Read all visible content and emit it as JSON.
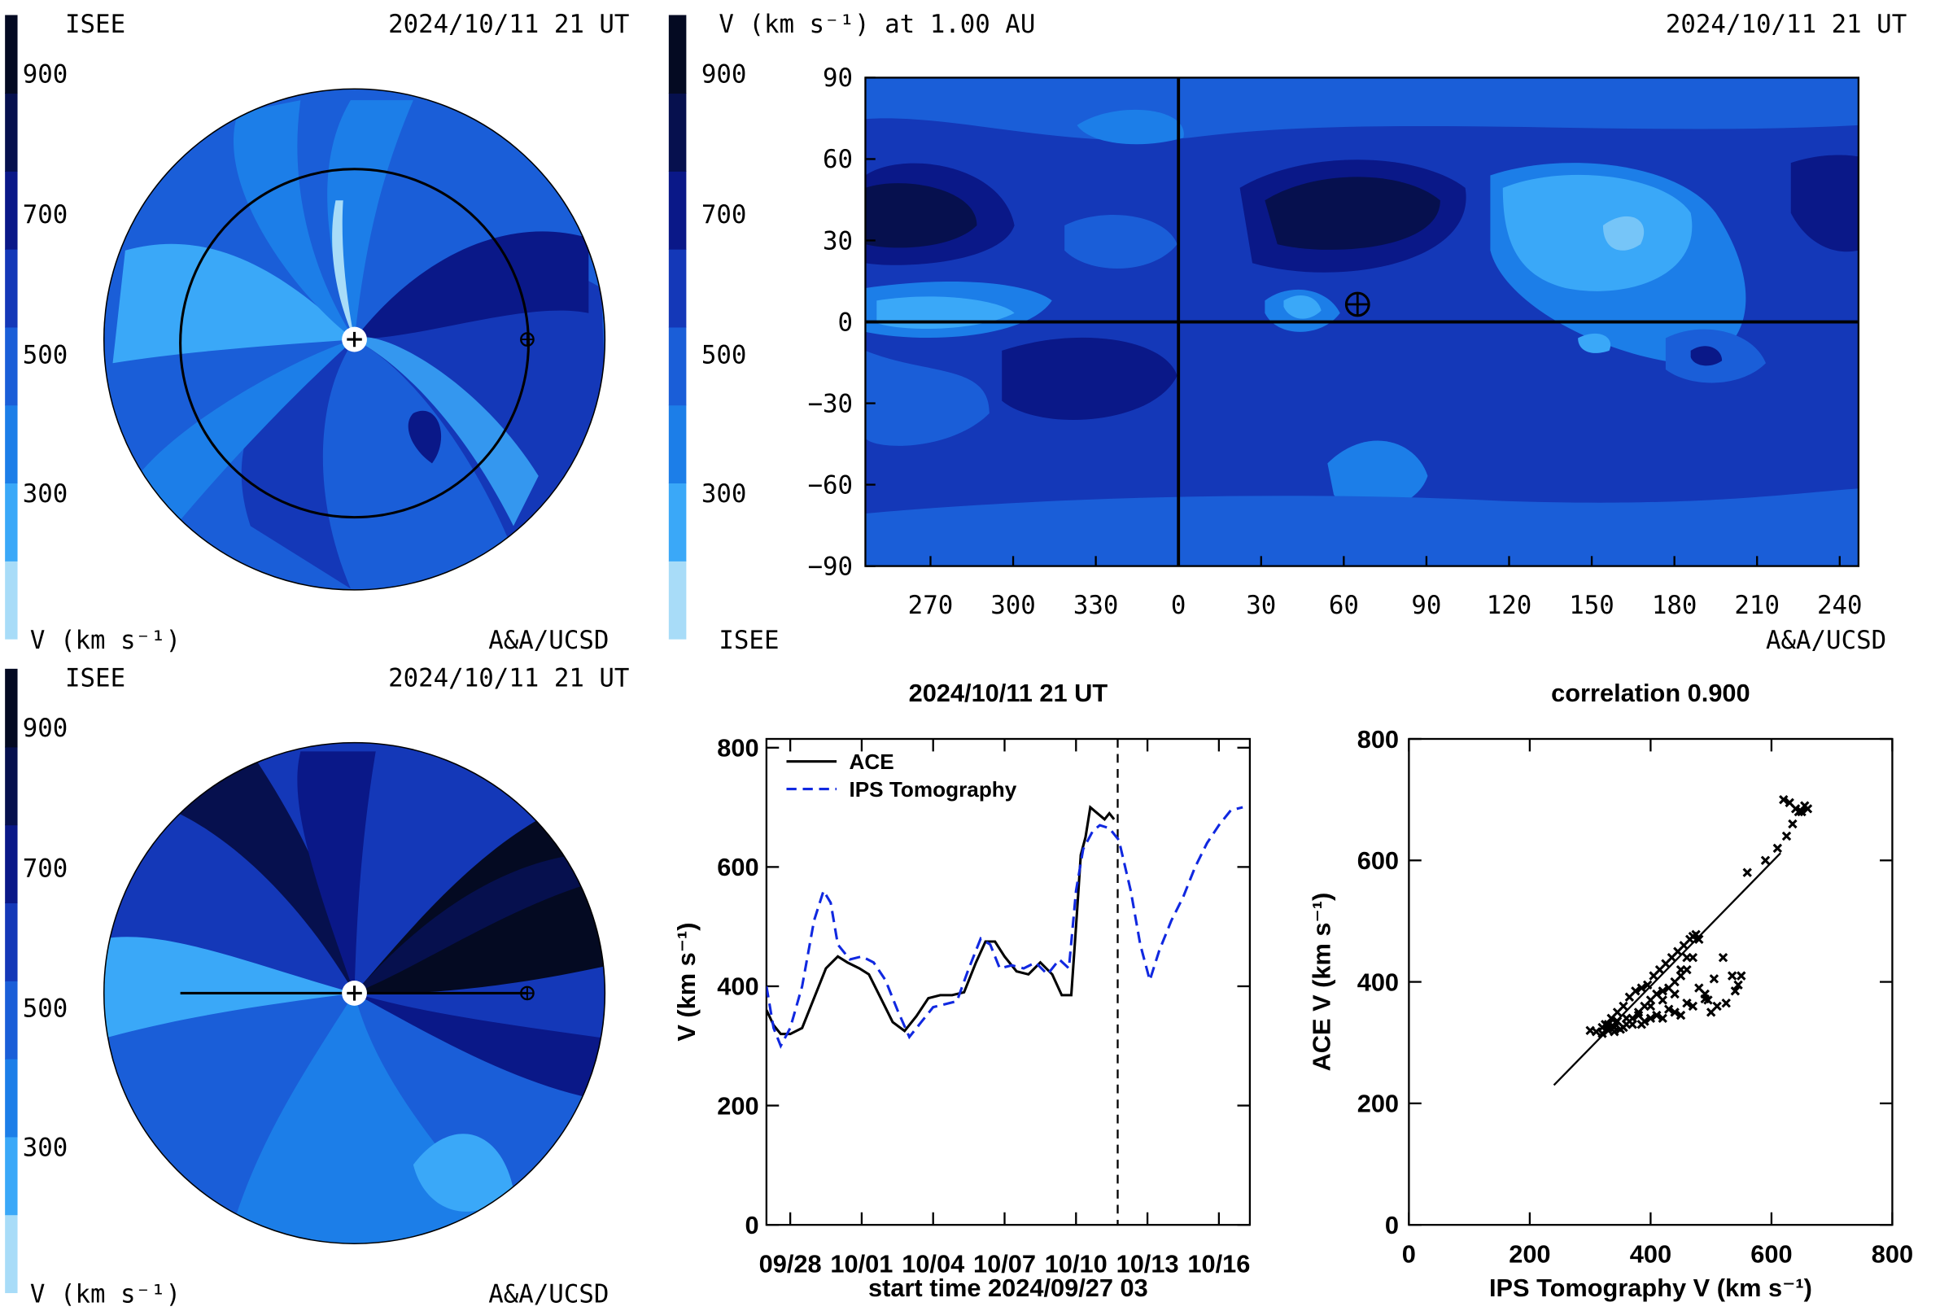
{
  "top_left_panel": {
    "institution": "ISEE",
    "timestamp": "2024/10/11 21 UT",
    "colorbar_label": "V (km s⁻¹)",
    "credit": "A&A/UCSD",
    "colorbar_ticks": [
      "900",
      "700",
      "500",
      "300"
    ]
  },
  "bottom_left_panel": {
    "institution": "ISEE",
    "timestamp": "2024/10/11 21 UT",
    "colorbar_label": "V (km s⁻¹)",
    "credit": "A&A/UCSD",
    "colorbar_ticks": [
      "900",
      "700",
      "500",
      "300"
    ]
  },
  "top_right_panel": {
    "title": "V (km s⁻¹) at 1.00 AU",
    "timestamp": "2024/10/11 21 UT",
    "institution": "ISEE",
    "credit": "A&A/UCSD",
    "colorbar_ticks": [
      "900",
      "700",
      "500",
      "300"
    ]
  },
  "colors": {
    "levels": [
      "#a8dcf8",
      "#3aa8f8",
      "#1c7ee8",
      "#1a5ed8",
      "#1438b8",
      "#0a1888",
      "#06104e",
      "#040a22"
    ],
    "line": "#000000",
    "ips_line": "#1028e0"
  },
  "chart_data": [
    {
      "type": "heatmap",
      "title": "V (km s⁻¹) at 1.00 AU",
      "x_ticks": [
        "270",
        "300",
        "330",
        "0",
        "30",
        "60",
        "90",
        "120",
        "150",
        "180",
        "210",
        "240"
      ],
      "y_ticks": [
        "90",
        "60",
        "30",
        "0",
        "−30",
        "−60",
        "−90"
      ],
      "ylim": [
        -90,
        90
      ],
      "earth_marker": {
        "longitude": 65,
        "latitude": 0
      },
      "colorbar_range": [
        200,
        1000
      ]
    },
    {
      "type": "line",
      "title": "2024/10/11 21 UT",
      "xlabel": "start time 2024/09/27 03",
      "ylabel": "V (km s⁻¹)",
      "x_unit": "days since start time",
      "x_ticks": [
        "09/28",
        "10/01",
        "10/04",
        "10/07",
        "10/10",
        "10/13",
        "10/16"
      ],
      "xlim": [
        0,
        20.3
      ],
      "ylim": [
        0,
        800
      ],
      "y_ticks": [
        0,
        200,
        400,
        600,
        800
      ],
      "current_time_marker": 14.75,
      "series": [
        {
          "name": "ACE",
          "x": [
            0.0,
            0.3,
            0.6,
            1.0,
            1.5,
            2.0,
            2.5,
            3.0,
            3.4,
            3.9,
            4.3,
            4.8,
            5.3,
            5.8,
            6.3,
            6.8,
            7.3,
            7.8,
            8.3,
            8.8,
            9.2,
            9.6,
            10.0,
            10.5,
            11.0,
            11.5,
            12.0,
            12.4,
            12.8,
            13.0,
            13.2,
            13.4,
            13.6,
            13.9,
            14.2,
            14.4,
            14.6
          ],
          "values": [
            360,
            335,
            320,
            320,
            330,
            380,
            430,
            450,
            440,
            430,
            420,
            380,
            340,
            325,
            350,
            380,
            385,
            385,
            390,
            440,
            475,
            475,
            450,
            425,
            420,
            440,
            420,
            385,
            385,
            500,
            620,
            650,
            700,
            690,
            680,
            690,
            680
          ]
        },
        {
          "name": "IPS Tomography",
          "x": [
            0.0,
            0.3,
            0.6,
            1.0,
            1.5,
            2.0,
            2.4,
            2.7,
            3.0,
            3.5,
            4.0,
            4.5,
            5.0,
            5.5,
            6.0,
            6.5,
            7.0,
            7.5,
            8.0,
            8.5,
            9.0,
            9.4,
            9.8,
            10.3,
            10.8,
            11.3,
            11.8,
            12.3,
            12.7,
            13.0,
            13.3,
            13.7,
            14.0,
            14.4,
            14.8,
            15.3,
            15.7,
            16.1,
            16.5,
            17.0,
            17.5,
            18.0,
            18.5,
            19.0,
            19.5,
            20.0
          ],
          "values": [
            400,
            330,
            300,
            330,
            400,
            510,
            560,
            540,
            470,
            445,
            450,
            440,
            410,
            360,
            315,
            340,
            365,
            370,
            375,
            430,
            480,
            470,
            430,
            435,
            430,
            440,
            420,
            445,
            430,
            560,
            630,
            660,
            670,
            665,
            645,
            560,
            470,
            410,
            460,
            510,
            550,
            600,
            640,
            670,
            695,
            700
          ]
        }
      ]
    },
    {
      "type": "scatter",
      "title": "correlation 0.900",
      "xlabel": "IPS Tomography V (km s⁻¹)",
      "ylabel": "ACE V (km s⁻¹)",
      "xlim": [
        0,
        800
      ],
      "ylim": [
        0,
        800
      ],
      "x_ticks": [
        0,
        200,
        400,
        600,
        800
      ],
      "y_ticks": [
        0,
        200,
        400,
        600,
        800
      ],
      "points": [
        {
          "x": 300,
          "y": 320
        },
        {
          "x": 310,
          "y": 318
        },
        {
          "x": 320,
          "y": 325
        },
        {
          "x": 325,
          "y": 330
        },
        {
          "x": 330,
          "y": 320
        },
        {
          "x": 335,
          "y": 340
        },
        {
          "x": 340,
          "y": 325
        },
        {
          "x": 345,
          "y": 350
        },
        {
          "x": 350,
          "y": 322
        },
        {
          "x": 355,
          "y": 360
        },
        {
          "x": 360,
          "y": 330
        },
        {
          "x": 365,
          "y": 375
        },
        {
          "x": 370,
          "y": 340
        },
        {
          "x": 375,
          "y": 385
        },
        {
          "x": 380,
          "y": 350
        },
        {
          "x": 385,
          "y": 390
        },
        {
          "x": 390,
          "y": 360
        },
        {
          "x": 395,
          "y": 395
        },
        {
          "x": 400,
          "y": 370
        },
        {
          "x": 405,
          "y": 410
        },
        {
          "x": 410,
          "y": 380
        },
        {
          "x": 415,
          "y": 420
        },
        {
          "x": 420,
          "y": 385
        },
        {
          "x": 425,
          "y": 430
        },
        {
          "x": 430,
          "y": 390
        },
        {
          "x": 435,
          "y": 440
        },
        {
          "x": 440,
          "y": 400
        },
        {
          "x": 445,
          "y": 450
        },
        {
          "x": 450,
          "y": 420
        },
        {
          "x": 455,
          "y": 460
        },
        {
          "x": 460,
          "y": 440
        },
        {
          "x": 465,
          "y": 470
        },
        {
          "x": 470,
          "y": 475
        },
        {
          "x": 475,
          "y": 478
        },
        {
          "x": 480,
          "y": 470
        },
        {
          "x": 470,
          "y": 440
        },
        {
          "x": 460,
          "y": 420
        },
        {
          "x": 450,
          "y": 410
        },
        {
          "x": 440,
          "y": 380
        },
        {
          "x": 420,
          "y": 370
        },
        {
          "x": 400,
          "y": 360
        },
        {
          "x": 380,
          "y": 345
        },
        {
          "x": 360,
          "y": 340
        },
        {
          "x": 345,
          "y": 335
        },
        {
          "x": 330,
          "y": 330
        },
        {
          "x": 320,
          "y": 315
        },
        {
          "x": 340,
          "y": 318
        },
        {
          "x": 355,
          "y": 325
        },
        {
          "x": 370,
          "y": 330
        },
        {
          "x": 390,
          "y": 335
        },
        {
          "x": 410,
          "y": 345
        },
        {
          "x": 430,
          "y": 355
        },
        {
          "x": 450,
          "y": 345
        },
        {
          "x": 470,
          "y": 360
        },
        {
          "x": 490,
          "y": 380
        },
        {
          "x": 505,
          "y": 405
        },
        {
          "x": 520,
          "y": 440
        },
        {
          "x": 535,
          "y": 410
        },
        {
          "x": 545,
          "y": 395
        },
        {
          "x": 550,
          "y": 410
        },
        {
          "x": 540,
          "y": 385
        },
        {
          "x": 525,
          "y": 365
        },
        {
          "x": 510,
          "y": 360
        },
        {
          "x": 500,
          "y": 350
        },
        {
          "x": 490,
          "y": 372
        },
        {
          "x": 480,
          "y": 390
        },
        {
          "x": 495,
          "y": 370
        },
        {
          "x": 460,
          "y": 365
        },
        {
          "x": 440,
          "y": 350
        },
        {
          "x": 420,
          "y": 340
        },
        {
          "x": 400,
          "y": 340
        },
        {
          "x": 385,
          "y": 330
        },
        {
          "x": 560,
          "y": 580
        },
        {
          "x": 590,
          "y": 600
        },
        {
          "x": 610,
          "y": 620
        },
        {
          "x": 625,
          "y": 640
        },
        {
          "x": 635,
          "y": 660
        },
        {
          "x": 620,
          "y": 700
        },
        {
          "x": 630,
          "y": 695
        },
        {
          "x": 640,
          "y": 685
        },
        {
          "x": 650,
          "y": 680
        },
        {
          "x": 660,
          "y": 685
        },
        {
          "x": 655,
          "y": 690
        },
        {
          "x": 645,
          "y": 680
        }
      ],
      "fit_line": {
        "x": [
          240,
          615
        ],
        "y": [
          230,
          612
        ]
      }
    }
  ]
}
